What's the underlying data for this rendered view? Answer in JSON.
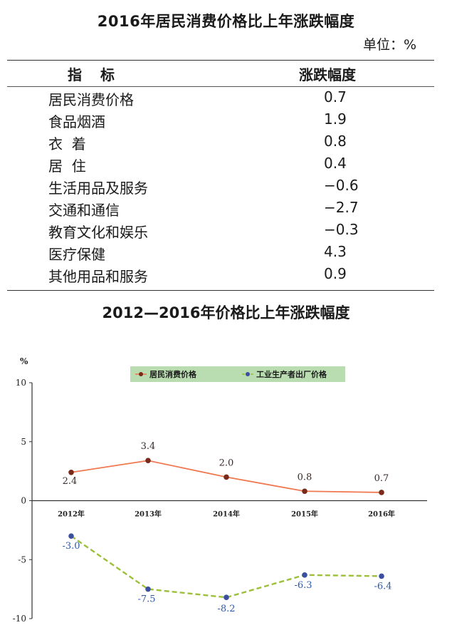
{
  "table": {
    "title": "2016年居民消费价格比上年涨跌幅度",
    "unit": "单位：%",
    "header": {
      "col1": "指标",
      "col2": "涨跌幅度"
    },
    "rows": [
      {
        "name": "居民消费价格",
        "value": "0.7"
      },
      {
        "name": "食品烟酒",
        "value": "1.9"
      },
      {
        "name": "衣  着",
        "value": "0.8"
      },
      {
        "name": "居  住",
        "value": "0.4"
      },
      {
        "name": "生活用品及服务",
        "value": "−0.6"
      },
      {
        "name": "交通和通信",
        "value": "−2.7"
      },
      {
        "name": "教育文化和娱乐",
        "value": "−0.3"
      },
      {
        "name": "医疗保健",
        "value": "4.3"
      },
      {
        "name": "其他用品和服务",
        "value": "0.9"
      }
    ]
  },
  "chart_data": {
    "type": "line",
    "title": "2012—2016年价格比上年涨跌幅度",
    "ylabel": "%",
    "xlabel": "",
    "categories": [
      "2012年",
      "2013年",
      "2014年",
      "2015年",
      "2016年"
    ],
    "ylim": [
      -10,
      10
    ],
    "yticks": [
      10,
      5,
      0,
      -5,
      -10
    ],
    "grid": false,
    "legend": "top",
    "series": [
      {
        "name": "居民消费价格",
        "values": [
          2.4,
          3.4,
          2.0,
          0.8,
          0.7
        ],
        "labels": [
          "2.4",
          "3.4",
          "2.0",
          "0.8",
          "0.7"
        ],
        "line_color": "#f07850",
        "marker_color": "#7a2a1a",
        "label_color": "#3a2a2a",
        "dashed": false
      },
      {
        "name": "工业生产者出厂价格",
        "values": [
          -3.0,
          -7.5,
          -8.2,
          -6.3,
          -6.4
        ],
        "labels": [
          "-3.0",
          "-7.5",
          "-8.2",
          "-6.3",
          "-6.4"
        ],
        "line_color": "#9cc03a",
        "marker_color": "#3a4fa0",
        "label_color": "#2e5aa8",
        "dashed": true
      }
    ],
    "legend_bg": "#b9dcb0"
  }
}
